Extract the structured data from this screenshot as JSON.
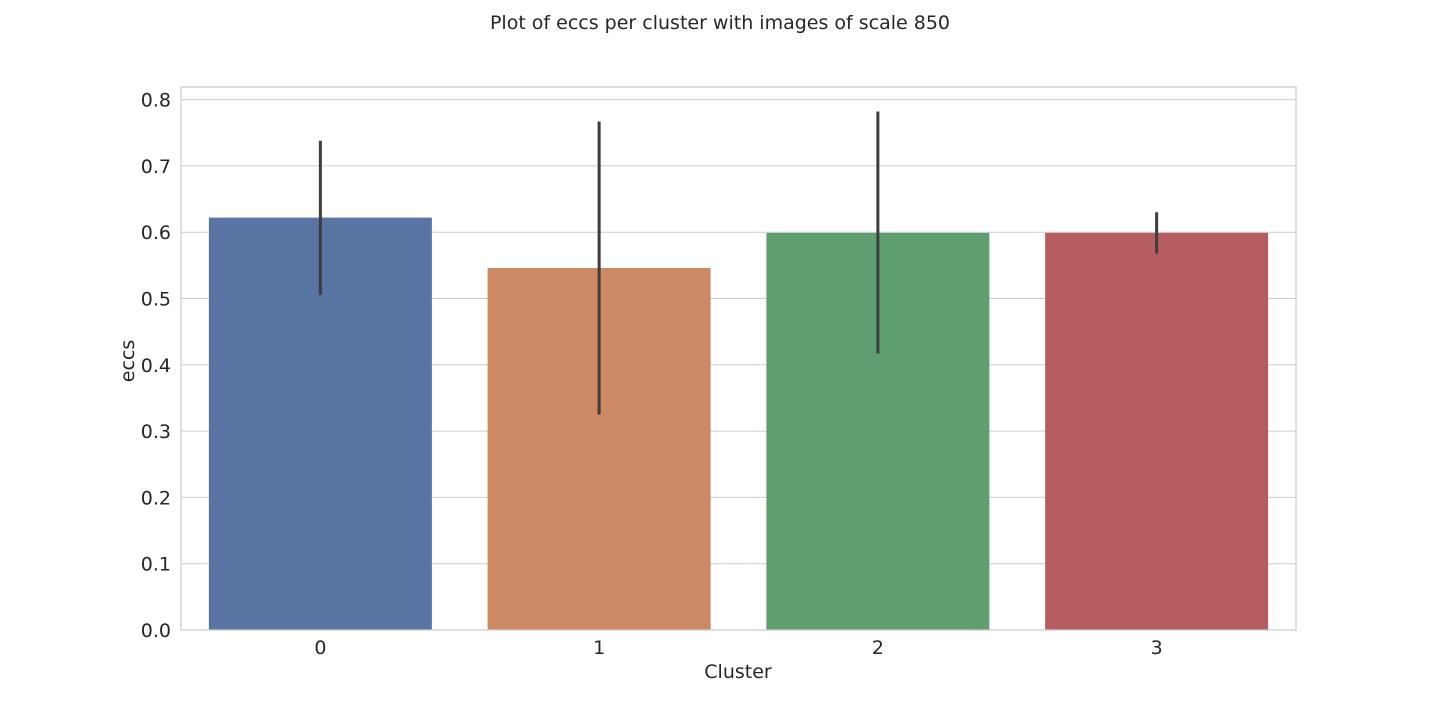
{
  "chart_data": {
    "type": "bar",
    "title": "Plot of eccs per cluster with images of scale 850",
    "xlabel": "Cluster",
    "ylabel": "eccs",
    "categories": [
      "0",
      "1",
      "2",
      "3"
    ],
    "values": [
      0.622,
      0.546,
      0.599,
      0.599
    ],
    "error_bars": [
      {
        "low": 0.505,
        "high": 0.738
      },
      {
        "low": 0.325,
        "high": 0.767
      },
      {
        "low": 0.417,
        "high": 0.782
      },
      {
        "low": 0.568,
        "high": 0.63
      }
    ],
    "colors": [
      "#5975a4",
      "#cc8963",
      "#5f9e6e",
      "#b55d60"
    ],
    "errorbar_color": "#3d3d3d",
    "ylim": [
      0,
      0.82
    ],
    "yticks": [
      0.0,
      0.1,
      0.2,
      0.3,
      0.4,
      0.5,
      0.6,
      0.7,
      0.8
    ],
    "ytick_labels": [
      "0.0",
      "0.1",
      "0.2",
      "0.3",
      "0.4",
      "0.5",
      "0.6",
      "0.7",
      "0.8"
    ],
    "grid": true,
    "grid_axis": "y"
  }
}
